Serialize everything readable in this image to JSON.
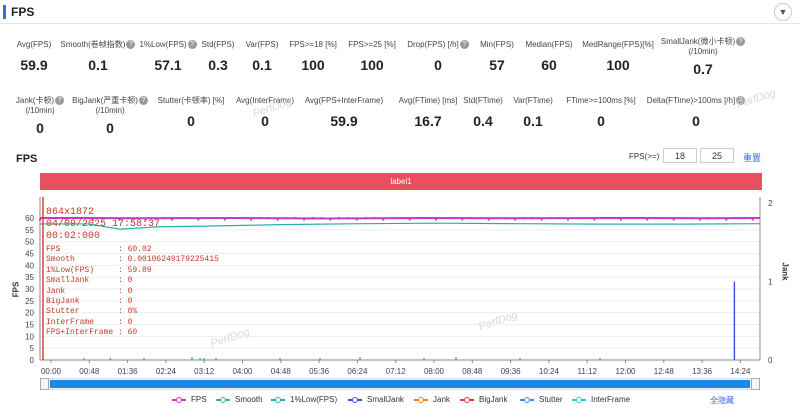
{
  "header": {
    "title": "FPS",
    "collapse_icon": "chevron-down-icon"
  },
  "stats_row1": [
    {
      "label": "Avg(FPS)",
      "value": "59.9",
      "help": false
    },
    {
      "label": "Smooth(卷帧指数)",
      "value": "0.1",
      "help": true
    },
    {
      "label": "1%Low(FPS)",
      "value": "57.1",
      "help": true
    },
    {
      "label": "Std(FPS)",
      "value": "0.3",
      "help": false
    },
    {
      "label": "Var(FPS)",
      "value": "0.1",
      "help": false
    },
    {
      "label": "FPS>=18 [%]",
      "value": "100",
      "help": false
    },
    {
      "label": "FPS>=25 [%]",
      "value": "100",
      "help": false
    },
    {
      "label": "Drop(FPS) [/h]",
      "value": "0",
      "help": true
    },
    {
      "label": "Min(FPS)",
      "value": "57",
      "help": false
    },
    {
      "label": "Median(FPS)",
      "value": "60",
      "help": false
    },
    {
      "label": "MedRange(FPS)[%]",
      "value": "100",
      "help": false
    },
    {
      "label": "SmallJank(微小卡顿)",
      "label2": "(/10min)",
      "value": "0.7",
      "help": true
    }
  ],
  "stats_row2": [
    {
      "label": "Jank(卡顿)",
      "label2": "(/10min)",
      "value": "0",
      "help": true
    },
    {
      "label": "BigJank(严重卡顿)",
      "label2": "(/10min)",
      "value": "0",
      "help": true
    },
    {
      "label": "Stutter(卡顿率) [%]",
      "value": "0",
      "help": false
    },
    {
      "label": "Avg(InterFrame)",
      "value": "0",
      "help": false
    },
    {
      "label": "Avg(FPS+InterFrame)",
      "value": "59.9",
      "help": false
    },
    {
      "label": "Avg(FTime) [ms]",
      "value": "16.7",
      "help": false
    },
    {
      "label": "Std(FTime)",
      "value": "0.4",
      "help": false
    },
    {
      "label": "Var(FTime)",
      "value": "0.1",
      "help": false
    },
    {
      "label": "FTime>=100ms [%]",
      "value": "0",
      "help": false
    },
    {
      "label": "Delta(FTime)>100ms [/h]",
      "value": "0",
      "help": true
    }
  ],
  "watermark": "PerfDog",
  "chart_section": {
    "title": "FPS",
    "range_label": "FPS(>=)",
    "range_low": "18",
    "range_high": "25",
    "reset_label": "重置",
    "band_label": "label1"
  },
  "tooltip": {
    "resolution": "864x1872",
    "datetime": "04/09/2025 17:58:37",
    "elapsed": "00:02:000",
    "rows": [
      {
        "k": "FPS",
        "v": ": 60.02"
      },
      {
        "k": "Smooth",
        "v": ": 0.00106249179225415"
      },
      {
        "k": "1%Low(FPS)",
        "v": ": 59.89"
      },
      {
        "k": "SmallJank",
        "v": ": 0"
      },
      {
        "k": "Jank",
        "v": ": 0"
      },
      {
        "k": "BigJank",
        "v": ": 0"
      },
      {
        "k": "Stutter",
        "v": ": 0%"
      },
      {
        "k": "InterFrame",
        "v": ": 0"
      },
      {
        "k": "FPS+InterFrame",
        "v": ": 60"
      }
    ]
  },
  "legend_hide_all": "全隐藏",
  "colors": {
    "FPS": "#c837c6",
    "Smooth": "#3cb371",
    "1%Low(FPS)": "#20b2aa",
    "SmallJank": "#3a4fd8",
    "Jank": "#ff7f0e",
    "BigJank": "#e0403a",
    "Stutter": "#4a90d9",
    "InterFrame": "#2fc6d6"
  },
  "chart_data": {
    "type": "line",
    "title": "",
    "xlabel": "",
    "ylabel": "FPS",
    "y2label": "Jank",
    "ylim": [
      0,
      65
    ],
    "y_ticks": [
      0,
      5,
      10,
      15,
      20,
      25,
      30,
      35,
      40,
      45,
      50,
      55,
      60
    ],
    "y2lim": [
      0,
      2
    ],
    "y2_ticks": [
      0,
      1,
      2
    ],
    "x_ticks": [
      "00:00",
      "00:48",
      "01:36",
      "02:24",
      "03:12",
      "04:00",
      "04:48",
      "05:36",
      "06:24",
      "07:12",
      "08:00",
      "08:48",
      "09:36",
      "10:24",
      "11:12",
      "12:00",
      "12:48",
      "13:36",
      "14:24"
    ],
    "x_seconds": [
      0,
      900
    ],
    "series": [
      {
        "name": "FPS",
        "x": [
          0,
          60,
          120,
          240,
          360,
          480,
          600,
          720,
          840,
          900
        ],
        "values": [
          60,
          60,
          59.9,
          60,
          59.8,
          60,
          59.9,
          60,
          59.9,
          60
        ]
      },
      {
        "name": "Smooth",
        "x": [
          55,
          88,
          130,
          190,
          200,
          205,
          220,
          300,
          350,
          400,
          480,
          520,
          600,
          700
        ],
        "values": [
          0.1,
          0.1,
          0.1,
          0.15,
          0.1,
          0.1,
          0.1,
          0.1,
          0.1,
          0.15,
          0.1,
          0.15,
          0.1,
          0.1
        ]
      },
      {
        "name": "1%Low(FPS)",
        "x": [
          0,
          60,
          100,
          150,
          200,
          300,
          400,
          500,
          600,
          700,
          800,
          900
        ],
        "values": [
          57.5,
          57.5,
          55.3,
          56.3,
          56.5,
          57.2,
          57.6,
          57.8,
          57.6,
          57.4,
          57.4,
          57.6
        ]
      },
      {
        "name": "SmallJank",
        "x": [
          868
        ],
        "values": [
          1
        ]
      },
      {
        "name": "Jank",
        "x": [],
        "values": []
      },
      {
        "name": "BigJank",
        "x": [],
        "values": []
      },
      {
        "name": "Stutter",
        "x": [],
        "values": []
      },
      {
        "name": "InterFrame",
        "x": [],
        "values": []
      }
    ],
    "legend": [
      "FPS",
      "Smooth",
      "1%Low(FPS)",
      "SmallJank",
      "Jank",
      "BigJank",
      "Stutter",
      "InterFrame"
    ],
    "legend_position": "bottom",
    "grid": true
  }
}
